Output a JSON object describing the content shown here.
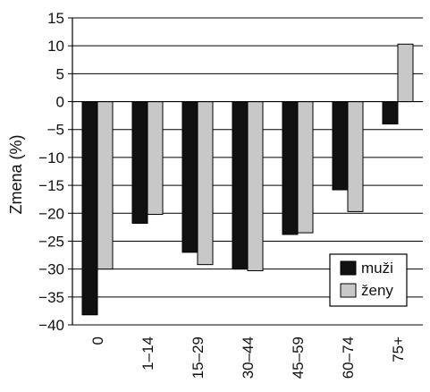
{
  "chart_data": {
    "type": "bar",
    "title": "",
    "xlabel": "",
    "ylabel": "Zmena (%)",
    "ylim": [
      -40,
      15
    ],
    "yticks": [
      15,
      10,
      5,
      0,
      -5,
      -10,
      -15,
      -20,
      -25,
      -30,
      -35,
      -40
    ],
    "grid": true,
    "legend_position": "bottom-right",
    "categories": [
      "0",
      "1–14",
      "15–29",
      "30–44",
      "45–59",
      "60–74",
      "75+"
    ],
    "series": [
      {
        "name": "muži",
        "color": "#111111",
        "values": [
          -38.2,
          -21.8,
          -27.0,
          -30.0,
          -23.8,
          -15.8,
          -4.0
        ]
      },
      {
        "name": "ženy",
        "color": "#c8c8c8",
        "values": [
          -30.0,
          -20.2,
          -29.2,
          -30.3,
          -23.5,
          -19.7,
          10.3
        ]
      }
    ]
  }
}
